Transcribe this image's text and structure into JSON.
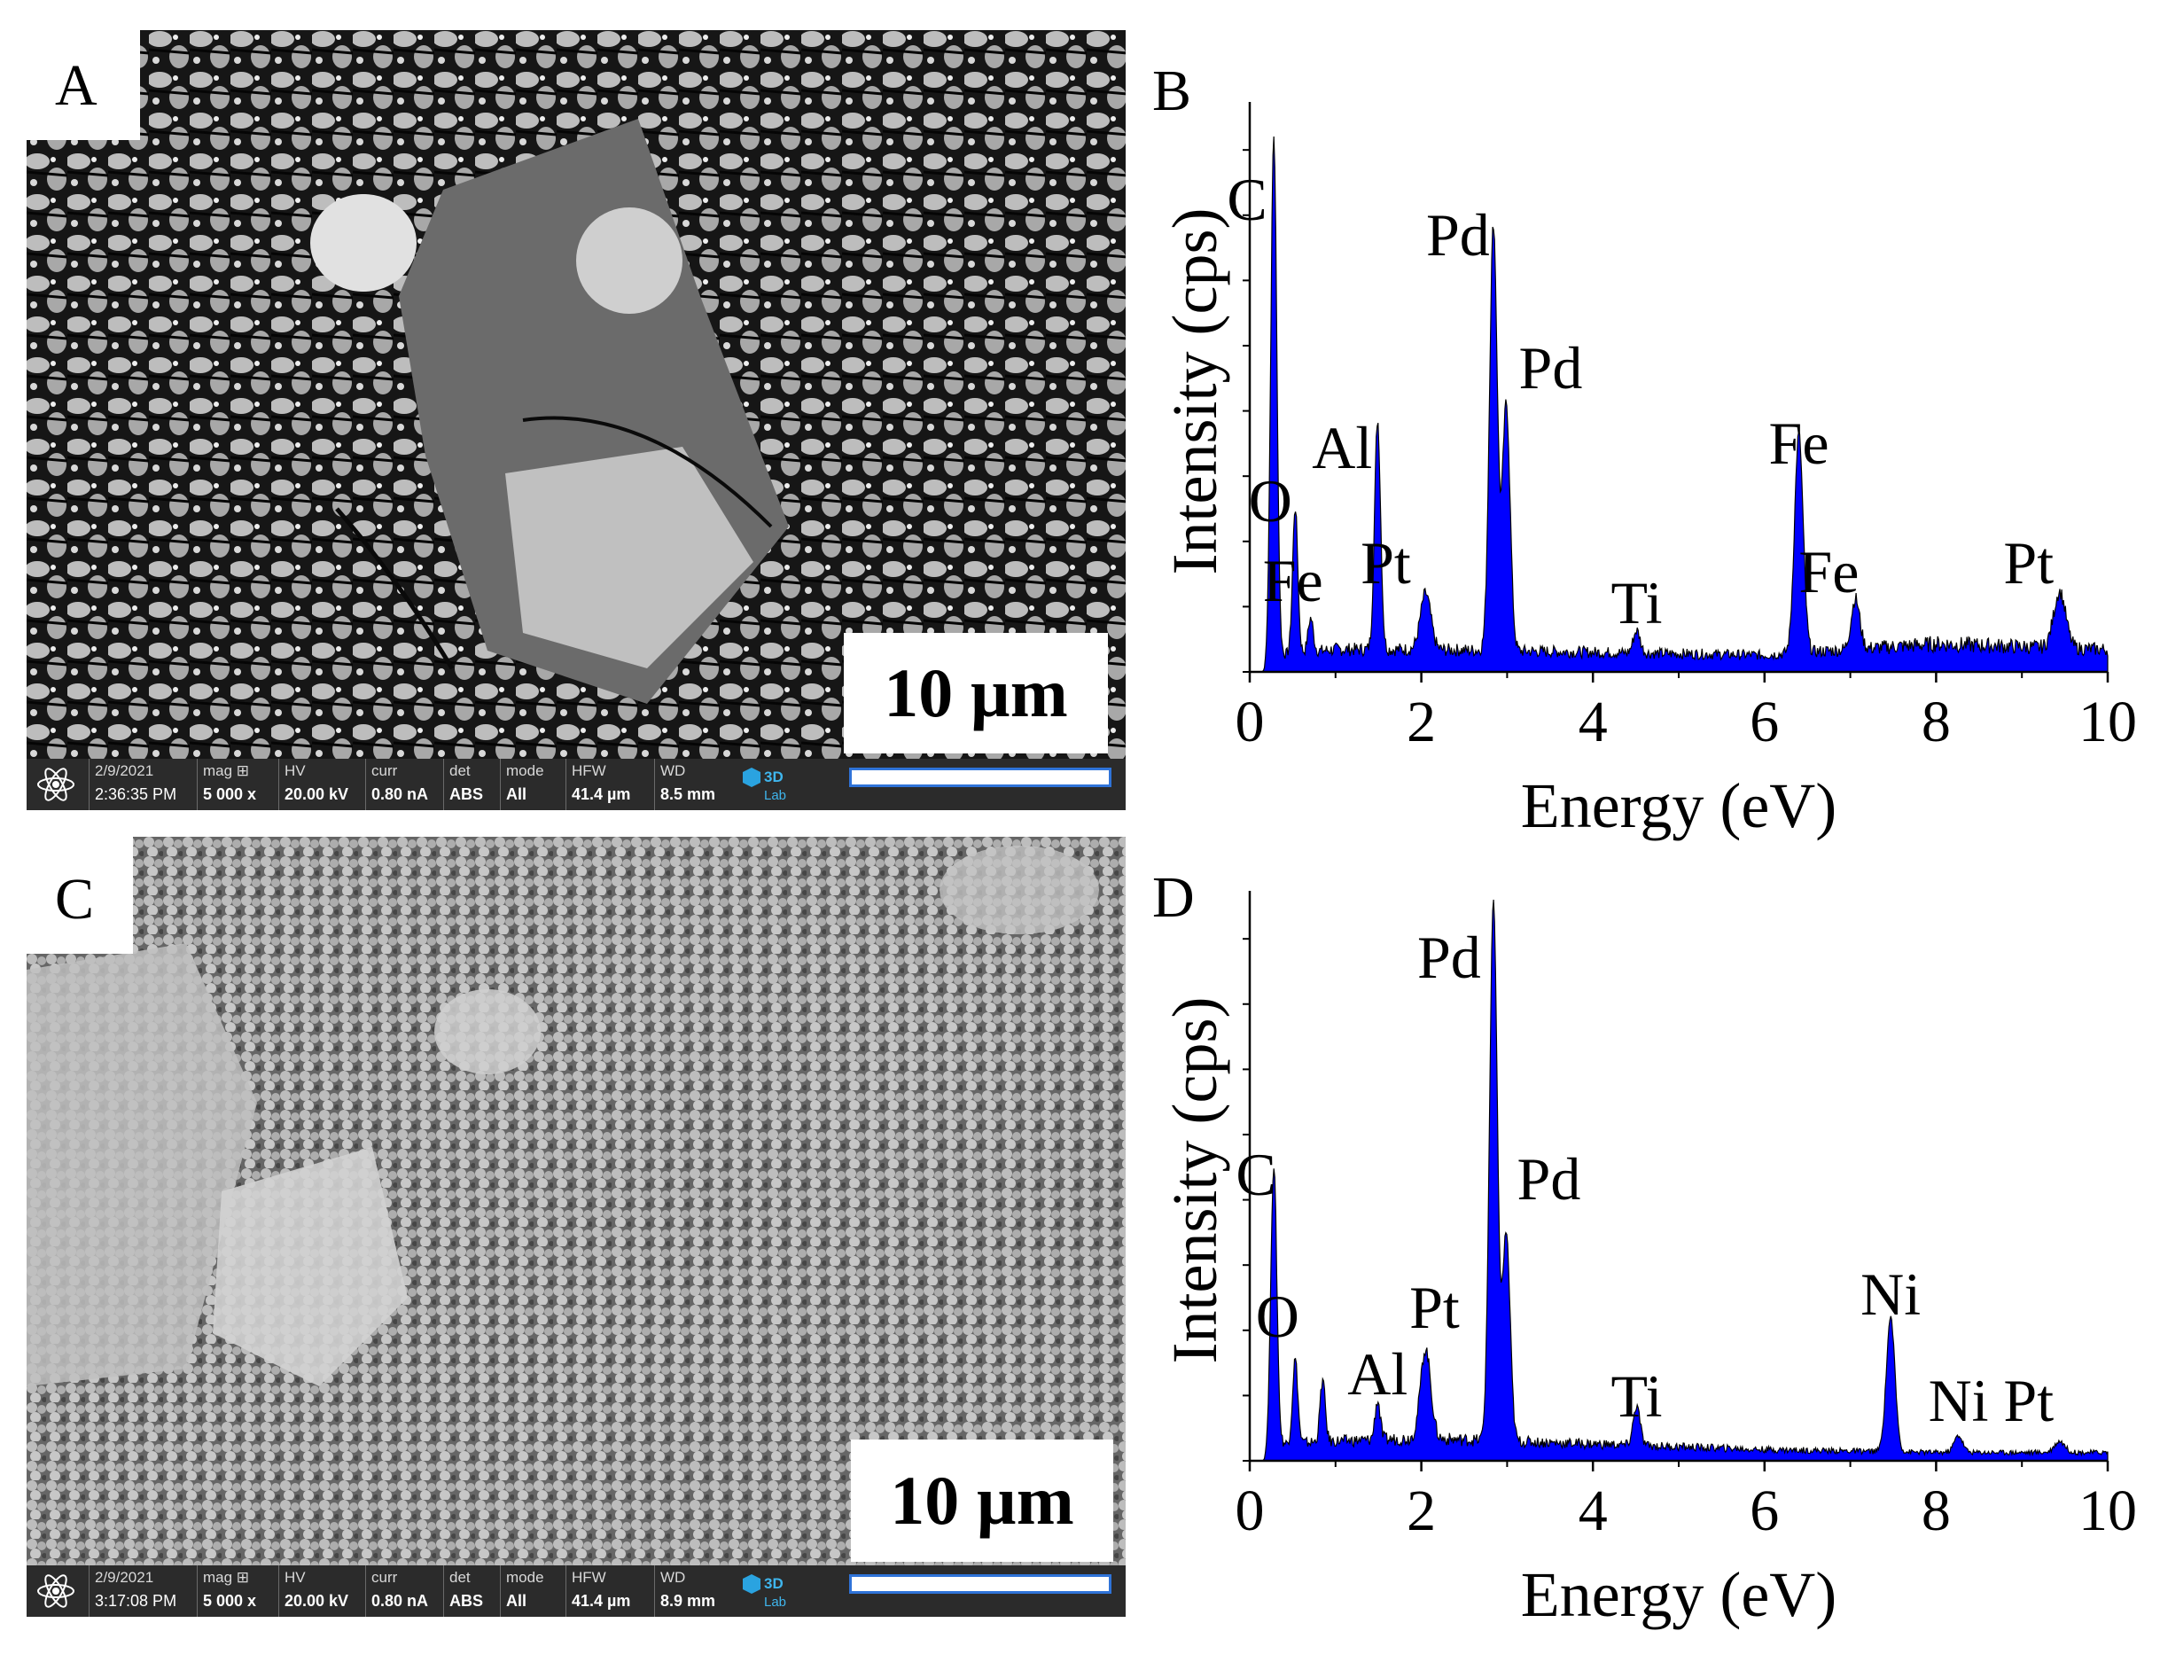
{
  "panels": {
    "a": {
      "label": "A"
    },
    "b": {
      "label": "B"
    },
    "c": {
      "label": "C"
    },
    "d": {
      "label": "D"
    }
  },
  "sem_top": {
    "scale_label": "10 µm",
    "date": "2/9/2021",
    "time": "2:36:35 PM",
    "mag_h": "mag ⊞",
    "mag_v": "5 000 x",
    "hv_h": "HV",
    "hv_v": "20.00 kV",
    "curr_h": "curr",
    "curr_v": "0.80 nA",
    "det_h": "det",
    "det_v": "ABS",
    "mode_h": "mode",
    "mode_v": "All",
    "hfw_h": "HFW",
    "hfw_v": "41.4 µm",
    "wd_h": "WD",
    "wd_v": "8.5 mm",
    "logo_text_1": "3D",
    "logo_text_2": "Lab",
    "icon": "atom-icon"
  },
  "sem_bottom": {
    "scale_label": "10 µm",
    "date": "2/9/2021",
    "time": "3:17:08 PM",
    "mag_h": "mag ⊞",
    "mag_v": "5 000 x",
    "hv_h": "HV",
    "hv_v": "20.00 kV",
    "curr_h": "curr",
    "curr_v": "0.80 nA",
    "det_h": "det",
    "det_v": "ABS",
    "mode_h": "mode",
    "mode_v": "All",
    "hfw_h": "HFW",
    "hfw_v": "41.4 µm",
    "wd_h": "WD",
    "wd_v": "8.9 mm",
    "logo_text_1": "3D",
    "logo_text_2": "Lab",
    "icon": "atom-icon"
  },
  "chart_data": [
    {
      "type": "area",
      "panel": "B",
      "color": "#0000ff",
      "xlabel": "Energy (eV)",
      "ylabel": "Intensity (cps)",
      "xlim": [
        0,
        10
      ],
      "ylim": [
        0,
        1
      ],
      "xticks": [
        "0",
        "2",
        "4",
        "6",
        "8",
        "10"
      ],
      "x_values": [
        0,
        2,
        4,
        6,
        8,
        10
      ],
      "baseline": [
        [
          0.15,
          0.0
        ],
        [
          0.3,
          0.03
        ],
        [
          1,
          0.04
        ],
        [
          2,
          0.04
        ],
        [
          4,
          0.035
        ],
        [
          6,
          0.03
        ],
        [
          8,
          0.05
        ],
        [
          10,
          0.04
        ]
      ],
      "peaks": [
        {
          "x": 0.28,
          "y": 0.93,
          "w": 0.035,
          "label": "C"
        },
        {
          "x": 0.53,
          "y": 0.26,
          "w": 0.03,
          "label": "O"
        },
        {
          "x": 0.71,
          "y": 0.06,
          "w": 0.03,
          "label": "Fe"
        },
        {
          "x": 1.49,
          "y": 0.41,
          "w": 0.035,
          "label": "Al"
        },
        {
          "x": 2.05,
          "y": 0.1,
          "w": 0.06,
          "label": "Pt"
        },
        {
          "x": 2.84,
          "y": 0.76,
          "w": 0.045,
          "label": "Pd"
        },
        {
          "x": 2.99,
          "y": 0.44,
          "w": 0.045,
          "label": "Pd"
        },
        {
          "x": 4.51,
          "y": 0.04,
          "w": 0.04,
          "label": "Ti"
        },
        {
          "x": 6.4,
          "y": 0.39,
          "w": 0.05,
          "label": "Fe"
        },
        {
          "x": 7.06,
          "y": 0.09,
          "w": 0.05,
          "label": "Fe"
        },
        {
          "x": 9.44,
          "y": 0.1,
          "w": 0.07,
          "label": "Pt"
        }
      ]
    },
    {
      "type": "area",
      "panel": "D",
      "color": "#0000ff",
      "xlabel": "Energy (eV)",
      "ylabel": "Intensity (cps)",
      "xlim": [
        0,
        10
      ],
      "ylim": [
        0,
        1
      ],
      "xticks": [
        "0",
        "2",
        "4",
        "6",
        "8",
        "10"
      ],
      "x_values": [
        0,
        2,
        4,
        6,
        8,
        10
      ],
      "baseline": [
        [
          0.15,
          0.0
        ],
        [
          0.3,
          0.03
        ],
        [
          1,
          0.035
        ],
        [
          2,
          0.04
        ],
        [
          4,
          0.03
        ],
        [
          6,
          0.02
        ],
        [
          8,
          0.015
        ],
        [
          10,
          0.015
        ]
      ],
      "peaks": [
        {
          "x": 0.28,
          "y": 0.5,
          "w": 0.035,
          "label": "C"
        },
        {
          "x": 0.53,
          "y": 0.15,
          "w": 0.03,
          "label": "O"
        },
        {
          "x": 0.85,
          "y": 0.11,
          "w": 0.03,
          "label": ""
        },
        {
          "x": 1.49,
          "y": 0.07,
          "w": 0.03,
          "label": "Al"
        },
        {
          "x": 2.05,
          "y": 0.16,
          "w": 0.06,
          "label": "Pt"
        },
        {
          "x": 2.84,
          "y": 0.96,
          "w": 0.045,
          "label": "Pd"
        },
        {
          "x": 2.99,
          "y": 0.37,
          "w": 0.045,
          "label": "Pd"
        },
        {
          "x": 4.51,
          "y": 0.07,
          "w": 0.04,
          "label": "Ti"
        },
        {
          "x": 7.47,
          "y": 0.24,
          "w": 0.05,
          "label": "Ni"
        },
        {
          "x": 8.26,
          "y": 0.03,
          "w": 0.05,
          "label": "Ni"
        },
        {
          "x": 9.44,
          "y": 0.02,
          "w": 0.06,
          "label": "Pt"
        }
      ]
    }
  ]
}
